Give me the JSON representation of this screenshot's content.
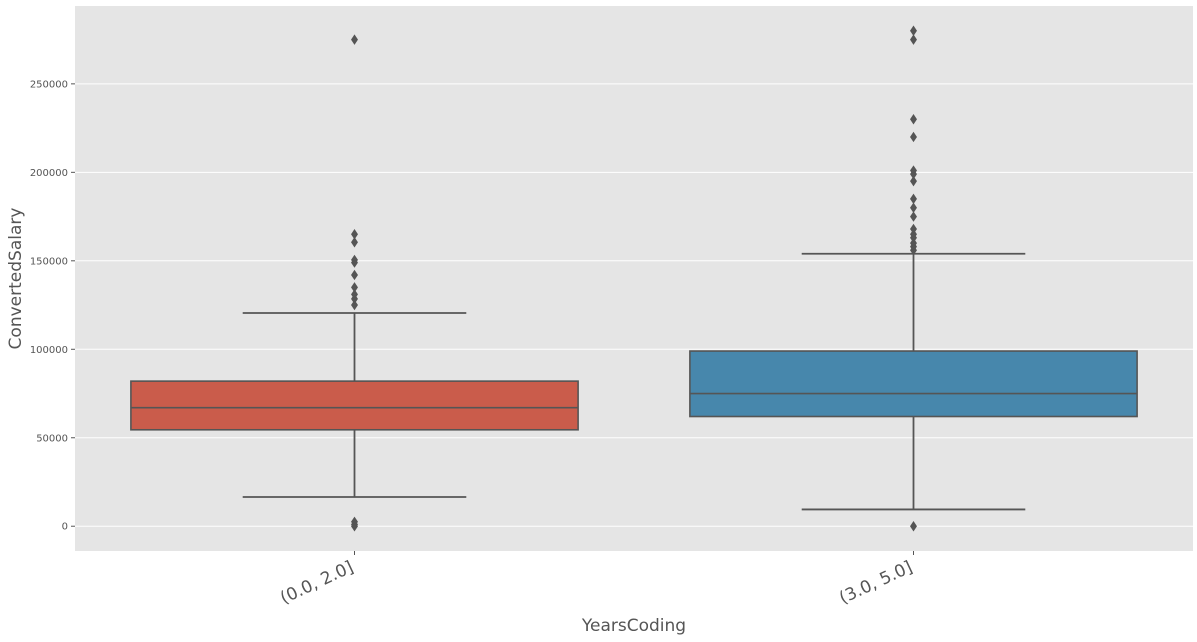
{
  "chart_data": {
    "type": "boxplot",
    "title": "",
    "xlabel": "YearsCoding",
    "ylabel": "ConvertedSalary",
    "ylim": [
      -14000,
      294000
    ],
    "yticks": [
      0,
      50000,
      100000,
      150000,
      200000,
      250000
    ],
    "ytick_labels": [
      "0",
      "50000",
      "100000",
      "150000",
      "200000",
      "250000"
    ],
    "grid": true,
    "background": "#e5e5e5",
    "box_edge_color": "#555555",
    "categories": [
      "(0.0, 2.0]",
      "(3.0, 5.0]"
    ],
    "boxes": [
      {
        "category": "(0.0, 2.0]",
        "color": "#ca5c4b",
        "whisker_low": 16500,
        "q1": 54500,
        "median": 67000,
        "q3": 82000,
        "whisker_high": 120500,
        "outliers": [
          0,
          1000,
          2500,
          125000,
          128500,
          131000,
          135000,
          142000,
          149000,
          150500,
          160500,
          165000,
          275000
        ]
      },
      {
        "category": "(3.0, 5.0]",
        "color": "#4787ac",
        "whisker_low": 9500,
        "q1": 62000,
        "median": 75000,
        "q3": 99000,
        "whisker_high": 154000,
        "outliers": [
          0,
          156000,
          158000,
          160000,
          163000,
          165000,
          168000,
          175000,
          180000,
          185000,
          195000,
          199000,
          201000,
          220000,
          230000,
          275000,
          280000
        ]
      }
    ]
  }
}
